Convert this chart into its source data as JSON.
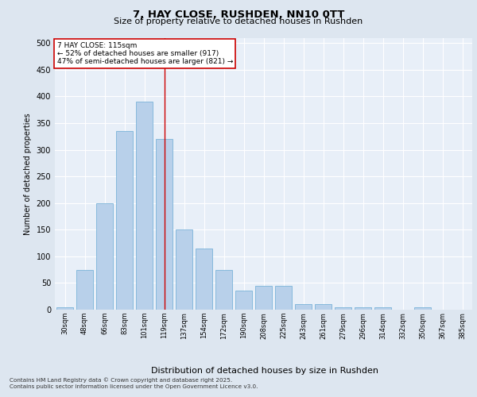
{
  "title1": "7, HAY CLOSE, RUSHDEN, NN10 0TT",
  "title2": "Size of property relative to detached houses in Rushden",
  "xlabel": "Distribution of detached houses by size in Rushden",
  "ylabel": "Number of detached properties",
  "categories": [
    "30sqm",
    "48sqm",
    "66sqm",
    "83sqm",
    "101sqm",
    "119sqm",
    "137sqm",
    "154sqm",
    "172sqm",
    "190sqm",
    "208sqm",
    "225sqm",
    "243sqm",
    "261sqm",
    "279sqm",
    "296sqm",
    "314sqm",
    "332sqm",
    "350sqm",
    "367sqm",
    "385sqm"
  ],
  "values": [
    5,
    75,
    200,
    335,
    390,
    320,
    150,
    115,
    75,
    35,
    45,
    45,
    10,
    10,
    5,
    5,
    5,
    0,
    5,
    0,
    0
  ],
  "bar_color": "#b8d0ea",
  "bar_edge_color": "#6aaad4",
  "vline_x_idx": 5,
  "vline_color": "#cc0000",
  "annotation_text": "7 HAY CLOSE: 115sqm\n← 52% of detached houses are smaller (917)\n47% of semi-detached houses are larger (821) →",
  "annotation_box_color": "#ffffff",
  "annotation_box_edge": "#cc0000",
  "background_color": "#dde6f0",
  "plot_bg_color": "#e8eff8",
  "footer1": "Contains HM Land Registry data © Crown copyright and database right 2025.",
  "footer2": "Contains public sector information licensed under the Open Government Licence v3.0.",
  "ylim": [
    0,
    510
  ],
  "yticks": [
    0,
    50,
    100,
    150,
    200,
    250,
    300,
    350,
    400,
    450,
    500
  ]
}
